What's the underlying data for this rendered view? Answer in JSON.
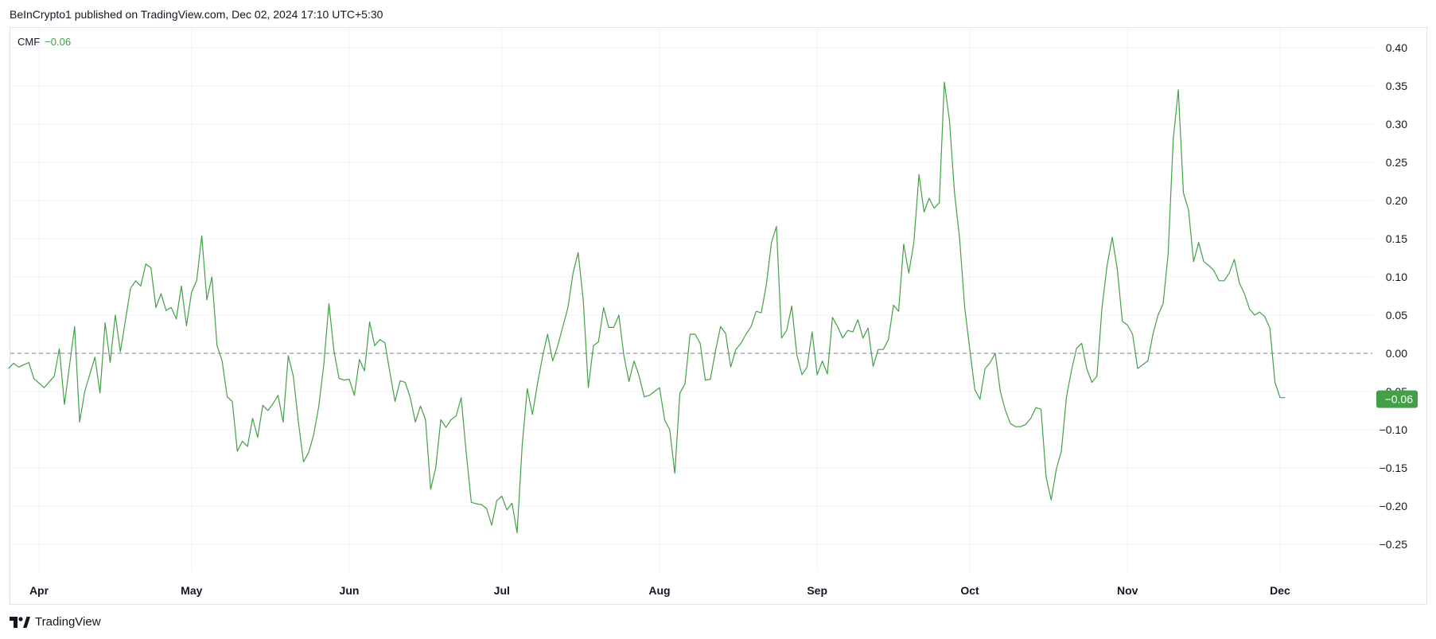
{
  "header": {
    "published_text": "BeInCrypto1 published on TradingView.com, Dec 02, 2024 17:10 UTC+5:30"
  },
  "legend": {
    "indicator_name": "CMF",
    "current_value_text": "−0.06"
  },
  "price_label": {
    "text": "−0.06",
    "value": -0.06
  },
  "footer": {
    "brand": "TradingView",
    "logo_icon": "tradingview-logo-icon"
  },
  "colors": {
    "line": "#43a047",
    "label_bg": "#43a047",
    "grid": "#f0f3fa",
    "zero_line": "#787b86",
    "axis_text": "#131722"
  },
  "chart_data": {
    "type": "line",
    "title": "",
    "xlabel": "",
    "ylabel": "",
    "ylim": [
      -0.3,
      0.42
    ],
    "y_ticks": [
      0.4,
      0.35,
      0.3,
      0.25,
      0.2,
      0.15,
      0.1,
      0.05,
      0.0,
      -0.05,
      -0.1,
      -0.15,
      -0.2,
      -0.25
    ],
    "y_tick_labels": [
      "0.40",
      "0.35",
      "0.30",
      "0.25",
      "0.20",
      "0.15",
      "0.10",
      "0.05",
      "0.00",
      "−0.05",
      "−0.10",
      "−0.15",
      "−0.20",
      "−0.25"
    ],
    "x_range": [
      "2024-03-26",
      "2024-12-19"
    ],
    "x_ticks": [
      {
        "date": "2024-04-01",
        "label": "Apr"
      },
      {
        "date": "2024-05-01",
        "label": "May"
      },
      {
        "date": "2024-06-01",
        "label": "Jun"
      },
      {
        "date": "2024-07-01",
        "label": "Jul"
      },
      {
        "date": "2024-08-01",
        "label": "Aug"
      },
      {
        "date": "2024-09-01",
        "label": "Sep"
      },
      {
        "date": "2024-10-01",
        "label": "Oct"
      },
      {
        "date": "2024-11-01",
        "label": "Nov"
      },
      {
        "date": "2024-12-01",
        "label": "Dec"
      }
    ],
    "zero_line": 0,
    "grid": true,
    "series": [
      {
        "name": "CMF",
        "points": [
          [
            "2024-03-26",
            -0.02
          ],
          [
            "2024-03-27",
            -0.013
          ],
          [
            "2024-03-28",
            -0.018
          ],
          [
            "2024-03-29",
            -0.015
          ],
          [
            "2024-03-30",
            -0.012
          ],
          [
            "2024-03-31",
            -0.033
          ],
          [
            "2024-04-02",
            -0.045
          ],
          [
            "2024-04-04",
            -0.03
          ],
          [
            "2024-04-05",
            0.006
          ],
          [
            "2024-04-06",
            -0.067
          ],
          [
            "2024-04-08",
            0.035
          ],
          [
            "2024-04-09",
            -0.09
          ],
          [
            "2024-04-10",
            -0.05
          ],
          [
            "2024-04-12",
            -0.005
          ],
          [
            "2024-04-13",
            -0.052
          ],
          [
            "2024-04-14",
            0.04
          ],
          [
            "2024-04-15",
            -0.012
          ],
          [
            "2024-04-16",
            0.05
          ],
          [
            "2024-04-17",
            0.002
          ],
          [
            "2024-04-19",
            0.085
          ],
          [
            "2024-04-20",
            0.095
          ],
          [
            "2024-04-21",
            0.088
          ],
          [
            "2024-04-22",
            0.117
          ],
          [
            "2024-04-23",
            0.112
          ],
          [
            "2024-04-24",
            0.06
          ],
          [
            "2024-04-25",
            0.078
          ],
          [
            "2024-04-26",
            0.056
          ],
          [
            "2024-04-27",
            0.06
          ],
          [
            "2024-04-28",
            0.045
          ],
          [
            "2024-04-29",
            0.088
          ],
          [
            "2024-04-30",
            0.036
          ],
          [
            "2024-05-01",
            0.08
          ],
          [
            "2024-05-02",
            0.095
          ],
          [
            "2024-05-03",
            0.154
          ],
          [
            "2024-05-04",
            0.07
          ],
          [
            "2024-05-05",
            0.1
          ],
          [
            "2024-05-06",
            0.01
          ],
          [
            "2024-05-07",
            -0.01
          ],
          [
            "2024-05-08",
            -0.057
          ],
          [
            "2024-05-09",
            -0.063
          ],
          [
            "2024-05-10",
            -0.128
          ],
          [
            "2024-05-11",
            -0.115
          ],
          [
            "2024-05-12",
            -0.122
          ],
          [
            "2024-05-13",
            -0.085
          ],
          [
            "2024-05-14",
            -0.11
          ],
          [
            "2024-05-15",
            -0.068
          ],
          [
            "2024-05-16",
            -0.075
          ],
          [
            "2024-05-17",
            -0.066
          ],
          [
            "2024-05-18",
            -0.055
          ],
          [
            "2024-05-19",
            -0.09
          ],
          [
            "2024-05-20",
            -0.003
          ],
          [
            "2024-05-21",
            -0.03
          ],
          [
            "2024-05-22",
            -0.09
          ],
          [
            "2024-05-23",
            -0.142
          ],
          [
            "2024-05-24",
            -0.13
          ],
          [
            "2024-05-25",
            -0.107
          ],
          [
            "2024-05-26",
            -0.07
          ],
          [
            "2024-05-27",
            -0.015
          ],
          [
            "2024-05-28",
            0.065
          ],
          [
            "2024-05-29",
            0.003
          ],
          [
            "2024-05-30",
            -0.033
          ],
          [
            "2024-05-31",
            -0.035
          ],
          [
            "2024-06-01",
            -0.034
          ],
          [
            "2024-06-02",
            -0.055
          ],
          [
            "2024-06-03",
            -0.008
          ],
          [
            "2024-06-04",
            -0.023
          ],
          [
            "2024-06-05",
            0.041
          ],
          [
            "2024-06-06",
            0.01
          ],
          [
            "2024-06-07",
            0.018
          ],
          [
            "2024-06-08",
            0.014
          ],
          [
            "2024-06-09",
            -0.025
          ],
          [
            "2024-06-10",
            -0.063
          ],
          [
            "2024-06-11",
            -0.036
          ],
          [
            "2024-06-12",
            -0.038
          ],
          [
            "2024-06-13",
            -0.058
          ],
          [
            "2024-06-14",
            -0.09
          ],
          [
            "2024-06-15",
            -0.069
          ],
          [
            "2024-06-16",
            -0.087
          ],
          [
            "2024-06-17",
            -0.178
          ],
          [
            "2024-06-18",
            -0.15
          ],
          [
            "2024-06-19",
            -0.087
          ],
          [
            "2024-06-20",
            -0.097
          ],
          [
            "2024-06-21",
            -0.087
          ],
          [
            "2024-06-22",
            -0.082
          ],
          [
            "2024-06-23",
            -0.058
          ],
          [
            "2024-06-24",
            -0.13
          ],
          [
            "2024-06-25",
            -0.195
          ],
          [
            "2024-06-26",
            -0.197
          ],
          [
            "2024-06-27",
            -0.198
          ],
          [
            "2024-06-28",
            -0.203
          ],
          [
            "2024-06-29",
            -0.225
          ],
          [
            "2024-06-30",
            -0.193
          ],
          [
            "2024-07-01",
            -0.187
          ],
          [
            "2024-07-02",
            -0.205
          ],
          [
            "2024-07-03",
            -0.196
          ],
          [
            "2024-07-04",
            -0.235
          ],
          [
            "2024-07-05",
            -0.12
          ],
          [
            "2024-07-06",
            -0.046
          ],
          [
            "2024-07-07",
            -0.08
          ],
          [
            "2024-07-08",
            -0.04
          ],
          [
            "2024-07-09",
            -0.004
          ],
          [
            "2024-07-10",
            0.025
          ],
          [
            "2024-07-11",
            -0.01
          ],
          [
            "2024-07-12",
            0.01
          ],
          [
            "2024-07-13",
            0.035
          ],
          [
            "2024-07-14",
            0.06
          ],
          [
            "2024-07-15",
            0.105
          ],
          [
            "2024-07-16",
            0.132
          ],
          [
            "2024-07-17",
            0.07
          ],
          [
            "2024-07-18",
            -0.045
          ],
          [
            "2024-07-19",
            0.01
          ],
          [
            "2024-07-20",
            0.015
          ],
          [
            "2024-07-21",
            0.06
          ],
          [
            "2024-07-22",
            0.034
          ],
          [
            "2024-07-23",
            0.034
          ],
          [
            "2024-07-24",
            0.05
          ],
          [
            "2024-07-25",
            -0.003
          ],
          [
            "2024-07-26",
            -0.037
          ],
          [
            "2024-07-27",
            -0.01
          ],
          [
            "2024-07-28",
            -0.03
          ],
          [
            "2024-07-29",
            -0.057
          ],
          [
            "2024-07-30",
            -0.055
          ],
          [
            "2024-07-31",
            -0.05
          ],
          [
            "2024-08-01",
            -0.045
          ],
          [
            "2024-08-02",
            -0.087
          ],
          [
            "2024-08-03",
            -0.1
          ],
          [
            "2024-08-04",
            -0.157
          ],
          [
            "2024-08-05",
            -0.052
          ],
          [
            "2024-08-06",
            -0.04
          ],
          [
            "2024-08-07",
            0.025
          ],
          [
            "2024-08-08",
            0.025
          ],
          [
            "2024-08-09",
            0.013
          ],
          [
            "2024-08-10",
            -0.035
          ],
          [
            "2024-08-11",
            -0.034
          ],
          [
            "2024-08-12",
            0.003
          ],
          [
            "2024-08-13",
            0.035
          ],
          [
            "2024-08-14",
            0.026
          ],
          [
            "2024-08-15",
            -0.018
          ],
          [
            "2024-08-16",
            0.005
          ],
          [
            "2024-08-17",
            0.013
          ],
          [
            "2024-08-18",
            0.025
          ],
          [
            "2024-08-19",
            0.035
          ],
          [
            "2024-08-20",
            0.055
          ],
          [
            "2024-08-21",
            0.053
          ],
          [
            "2024-08-22",
            0.09
          ],
          [
            "2024-08-23",
            0.145
          ],
          [
            "2024-08-24",
            0.166
          ],
          [
            "2024-08-25",
            0.02
          ],
          [
            "2024-08-26",
            0.03
          ],
          [
            "2024-08-27",
            0.062
          ],
          [
            "2024-08-28",
            -0.002
          ],
          [
            "2024-08-29",
            -0.028
          ],
          [
            "2024-08-30",
            -0.018
          ],
          [
            "2024-08-31",
            0.028
          ],
          [
            "2024-09-01",
            -0.028
          ],
          [
            "2024-09-02",
            -0.01
          ],
          [
            "2024-09-03",
            -0.027
          ],
          [
            "2024-09-04",
            0.047
          ],
          [
            "2024-09-05",
            0.035
          ],
          [
            "2024-09-06",
            0.02
          ],
          [
            "2024-09-07",
            0.03
          ],
          [
            "2024-09-08",
            0.028
          ],
          [
            "2024-09-09",
            0.044
          ],
          [
            "2024-09-10",
            0.02
          ],
          [
            "2024-09-11",
            0.033
          ],
          [
            "2024-09-12",
            -0.017
          ],
          [
            "2024-09-13",
            0.005
          ],
          [
            "2024-09-14",
            0.005
          ],
          [
            "2024-09-15",
            0.018
          ],
          [
            "2024-09-16",
            0.063
          ],
          [
            "2024-09-17",
            0.055
          ],
          [
            "2024-09-18",
            0.143
          ],
          [
            "2024-09-19",
            0.105
          ],
          [
            "2024-09-20",
            0.145
          ],
          [
            "2024-09-21",
            0.234
          ],
          [
            "2024-09-22",
            0.185
          ],
          [
            "2024-09-23",
            0.203
          ],
          [
            "2024-09-24",
            0.19
          ],
          [
            "2024-09-25",
            0.197
          ],
          [
            "2024-09-26",
            0.355
          ],
          [
            "2024-09-27",
            0.305
          ],
          [
            "2024-09-28",
            0.21
          ],
          [
            "2024-09-29",
            0.15
          ],
          [
            "2024-09-30",
            0.06
          ],
          [
            "2024-10-01",
            0.005
          ],
          [
            "2024-10-02",
            -0.048
          ],
          [
            "2024-10-03",
            -0.06
          ],
          [
            "2024-10-04",
            -0.02
          ],
          [
            "2024-10-05",
            -0.012
          ],
          [
            "2024-10-06",
            0.0
          ],
          [
            "2024-10-07",
            -0.05
          ],
          [
            "2024-10-08",
            -0.075
          ],
          [
            "2024-10-09",
            -0.092
          ],
          [
            "2024-10-10",
            -0.096
          ],
          [
            "2024-10-11",
            -0.096
          ],
          [
            "2024-10-12",
            -0.093
          ],
          [
            "2024-10-13",
            -0.085
          ],
          [
            "2024-10-14",
            -0.071
          ],
          [
            "2024-10-15",
            -0.073
          ],
          [
            "2024-10-16",
            -0.162
          ],
          [
            "2024-10-17",
            -0.192
          ],
          [
            "2024-10-18",
            -0.152
          ],
          [
            "2024-10-19",
            -0.128
          ],
          [
            "2024-10-20",
            -0.057
          ],
          [
            "2024-10-21",
            -0.022
          ],
          [
            "2024-10-22",
            0.007
          ],
          [
            "2024-10-23",
            0.013
          ],
          [
            "2024-10-24",
            -0.02
          ],
          [
            "2024-10-25",
            -0.038
          ],
          [
            "2024-10-26",
            -0.03
          ],
          [
            "2024-10-27",
            0.06
          ],
          [
            "2024-10-28",
            0.115
          ],
          [
            "2024-10-29",
            0.152
          ],
          [
            "2024-10-30",
            0.11
          ],
          [
            "2024-10-31",
            0.042
          ],
          [
            "2024-11-01",
            0.037
          ],
          [
            "2024-11-02",
            0.025
          ],
          [
            "2024-11-03",
            -0.02
          ],
          [
            "2024-11-04",
            -0.015
          ],
          [
            "2024-11-05",
            -0.01
          ],
          [
            "2024-11-06",
            0.025
          ],
          [
            "2024-11-07",
            0.05
          ],
          [
            "2024-11-08",
            0.065
          ],
          [
            "2024-11-09",
            0.13
          ],
          [
            "2024-11-10",
            0.28
          ],
          [
            "2024-11-11",
            0.345
          ],
          [
            "2024-11-12",
            0.21
          ],
          [
            "2024-11-13",
            0.188
          ],
          [
            "2024-11-14",
            0.12
          ],
          [
            "2024-11-15",
            0.145
          ],
          [
            "2024-11-16",
            0.12
          ],
          [
            "2024-11-17",
            0.115
          ],
          [
            "2024-11-18",
            0.108
          ],
          [
            "2024-11-19",
            0.095
          ],
          [
            "2024-11-20",
            0.095
          ],
          [
            "2024-11-21",
            0.105
          ],
          [
            "2024-11-22",
            0.123
          ],
          [
            "2024-11-23",
            0.092
          ],
          [
            "2024-11-24",
            0.078
          ],
          [
            "2024-11-25",
            0.058
          ],
          [
            "2024-11-26",
            0.05
          ],
          [
            "2024-11-27",
            0.054
          ],
          [
            "2024-11-28",
            0.048
          ],
          [
            "2024-11-29",
            0.033
          ],
          [
            "2024-11-30",
            -0.038
          ],
          [
            "2024-12-01",
            -0.058
          ],
          [
            "2024-12-02",
            -0.058
          ]
        ]
      }
    ]
  }
}
